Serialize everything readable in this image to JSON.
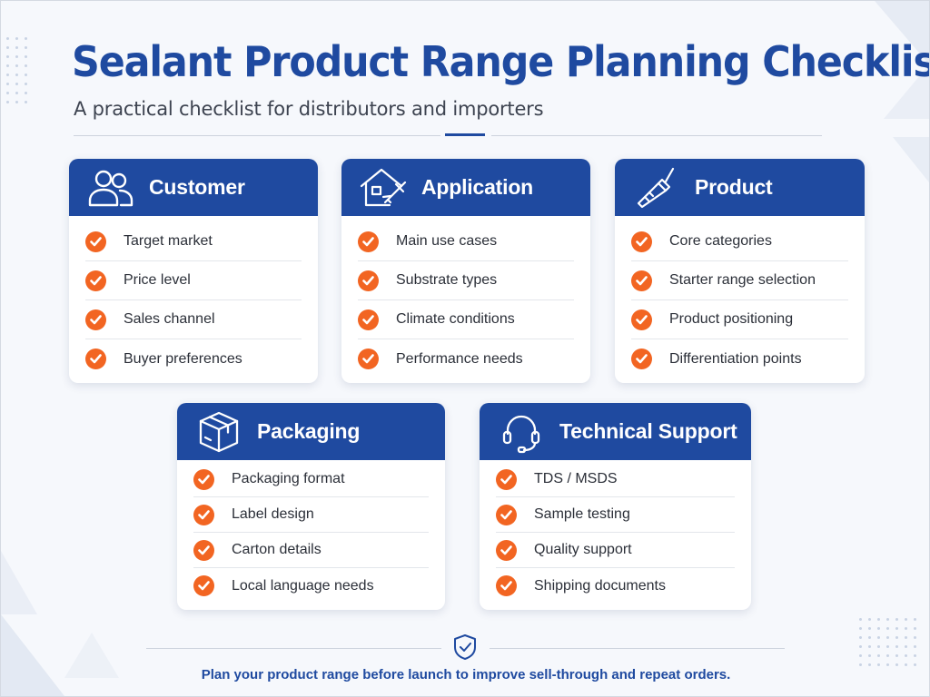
{
  "header": {
    "title": "Sealant Product Range Planning Checklist",
    "subtitle": "A practical checklist for distributors and importers"
  },
  "cards": [
    {
      "title": "Customer",
      "icon": "users-icon",
      "items": [
        "Target market",
        "Price level",
        "Sales channel",
        "Buyer preferences"
      ]
    },
    {
      "title": "Application",
      "icon": "house-caulk-gun-icon",
      "items": [
        "Main use cases",
        "Substrate types",
        "Climate conditions",
        "Performance needs"
      ]
    },
    {
      "title": "Product",
      "icon": "sealant-tube-icon",
      "items": [
        "Core categories",
        "Starter range selection",
        "Product positioning",
        "Differentiation points"
      ]
    },
    {
      "title": "Packaging",
      "icon": "box-icon",
      "items": [
        "Packaging format",
        "Label design",
        "Carton details",
        "Local language needs"
      ]
    },
    {
      "title": "Technical Support",
      "icon": "headset-icon",
      "items": [
        "TDS / MSDS",
        "Sample testing",
        "Quality support",
        "Shipping documents"
      ]
    }
  ],
  "footer": {
    "icon": "shield-check-icon",
    "text": "Plan your product range before launch to improve sell-through and repeat orders."
  },
  "colors": {
    "brand_blue": "#1f4aa0",
    "check_orange": "#f26522",
    "background": "#f6f8fc"
  }
}
